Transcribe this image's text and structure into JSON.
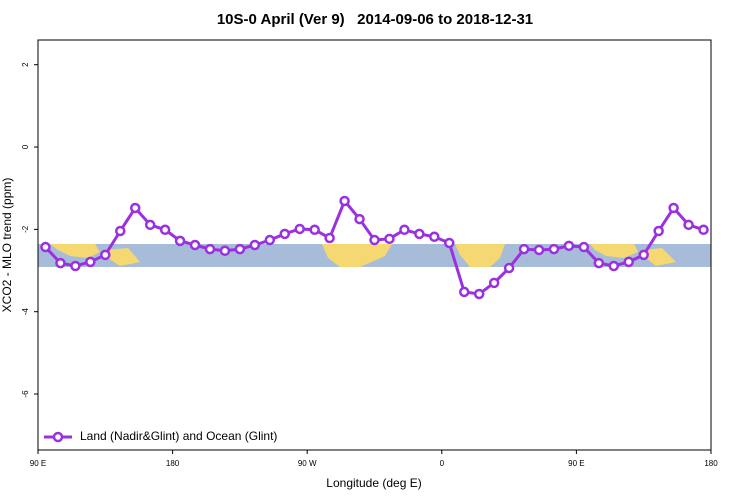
{
  "chart_data": {
    "type": "line",
    "title": "10S-0 April (Ver 9)   2014-09-06 to 2018-12-31",
    "x_label": "Longitude (deg E)",
    "y_label": "XCO2 - MLO trend (ppm)",
    "x": [
      95,
      105,
      115,
      125,
      135,
      145,
      155,
      165,
      175,
      185,
      195,
      205,
      215,
      225,
      235,
      245,
      255,
      265,
      275,
      285,
      295,
      305,
      315,
      325,
      335,
      345,
      355,
      365,
      375,
      385,
      395,
      405,
      415,
      425,
      435,
      445,
      455,
      465,
      475,
      485,
      495,
      505,
      515,
      525,
      535
    ],
    "series": [
      {
        "name": "Land (Nadir&Glint) and Ocean (Glint)",
        "color": "#9b30e0",
        "values": [
          -2.43,
          -2.82,
          -2.89,
          -2.79,
          -2.62,
          -2.04,
          -1.48,
          -1.89,
          -2.01,
          -2.28,
          -2.38,
          -2.48,
          -2.52,
          -2.48,
          -2.38,
          -2.26,
          -2.11,
          -1.99,
          -2.01,
          -2.21,
          -1.31,
          -1.75,
          -2.26,
          -2.23,
          -2.01,
          -2.11,
          -2.18,
          -2.33,
          -3.52,
          -3.57,
          -3.3,
          -2.94,
          -2.48,
          -2.5,
          -2.48,
          -2.4,
          -2.43,
          -2.82,
          -2.89,
          -2.79,
          -2.62,
          -2.04,
          -1.48,
          -1.89,
          -2.01
        ]
      }
    ],
    "xlim": [
      90,
      540
    ],
    "xticks": [
      {
        "value": 90,
        "label": "90 E"
      },
      180,
      {
        "value": 270,
        "label": "90 W"
      },
      {
        "value": 360,
        "label": "0"
      },
      {
        "value": 450,
        "label": "90 E"
      },
      {
        "value": 540,
        "label": "180"
      }
    ],
    "ylim": [
      -7.36,
      2.6
    ],
    "yticks": [
      -6,
      -4,
      -2,
      0,
      2
    ],
    "legend": "bottom-left"
  }
}
